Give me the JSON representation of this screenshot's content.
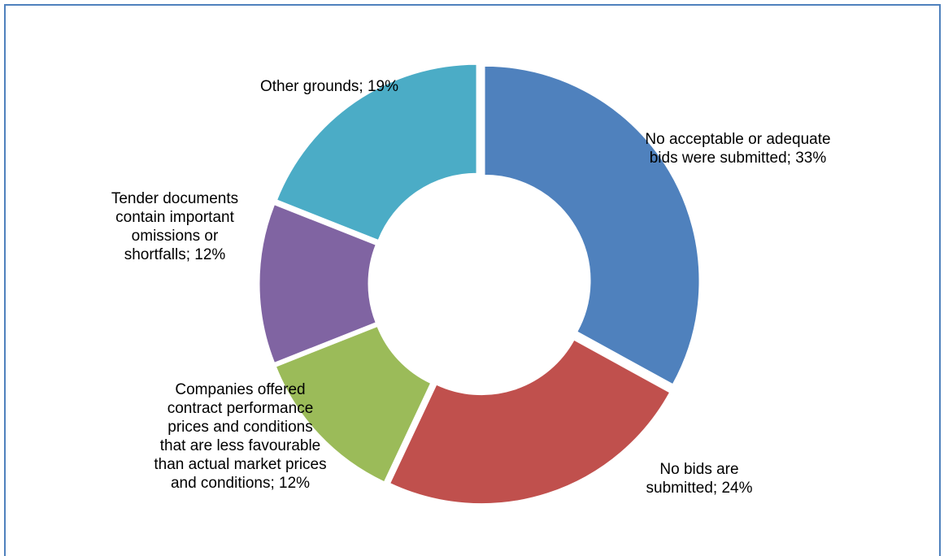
{
  "chart_data": {
    "type": "donut",
    "values": [
      33,
      24,
      12,
      12,
      19
    ],
    "value_labels": [
      "No acceptable or adequate bids were submitted; 33%",
      "No bids are submitted; 24%",
      "Companies offered contract performance prices and conditions that are less favourable than actual market prices and conditions; 12%",
      "Tender documents contain important omissions or shortfalls; 12%",
      "Other grounds; 19%"
    ],
    "colors": [
      "#4f81bd",
      "#c0504d",
      "#9bbb59",
      "#8064a2",
      "#4bacc6"
    ]
  }
}
